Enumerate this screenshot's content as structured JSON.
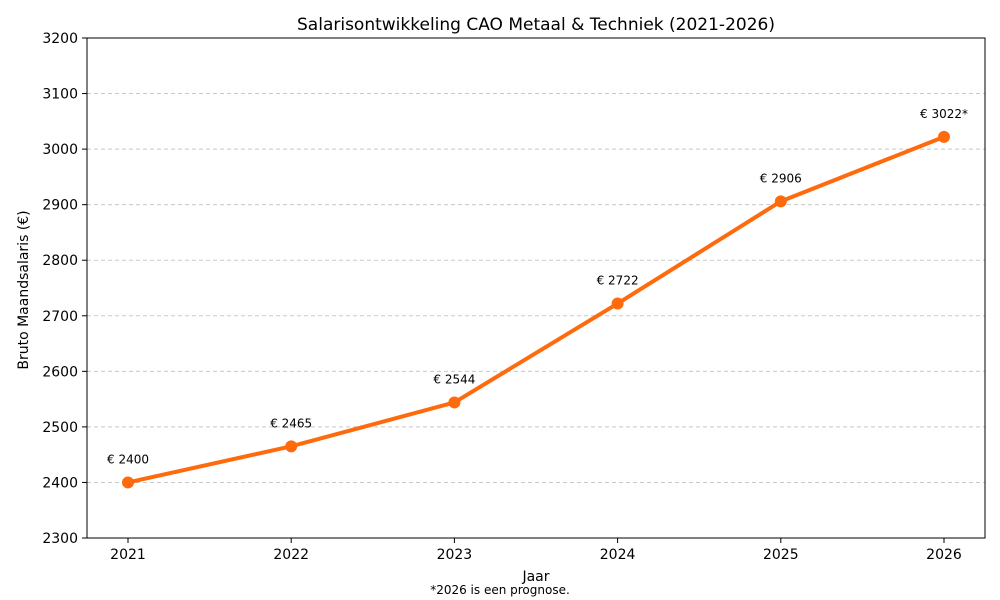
{
  "chart_data": {
    "type": "line",
    "title": "Salarisontwikkeling CAO Metaal & Techniek (2021-2026)",
    "xlabel": "Jaar",
    "ylabel": "Bruto Maandsalaris (€)",
    "categories": [
      "2021",
      "2022",
      "2023",
      "2024",
      "2025",
      "2026"
    ],
    "series": [
      {
        "values": [
          2400,
          2465,
          2544,
          2722,
          2906,
          3022
        ],
        "color": "#ff6a0d"
      }
    ],
    "data_labels": [
      "€ 2400",
      "€ 2465",
      "€ 2544",
      "€ 2722",
      "€ 2906",
      "€ 3022*"
    ],
    "ylim": [
      2300,
      3200
    ],
    "yticks": [
      "2300",
      "2400",
      "2500",
      "2600",
      "2700",
      "2800",
      "2900",
      "3000",
      "3100",
      "3200"
    ],
    "grid": "horizontal dashed",
    "footnote": "*2026 is een prognose."
  }
}
